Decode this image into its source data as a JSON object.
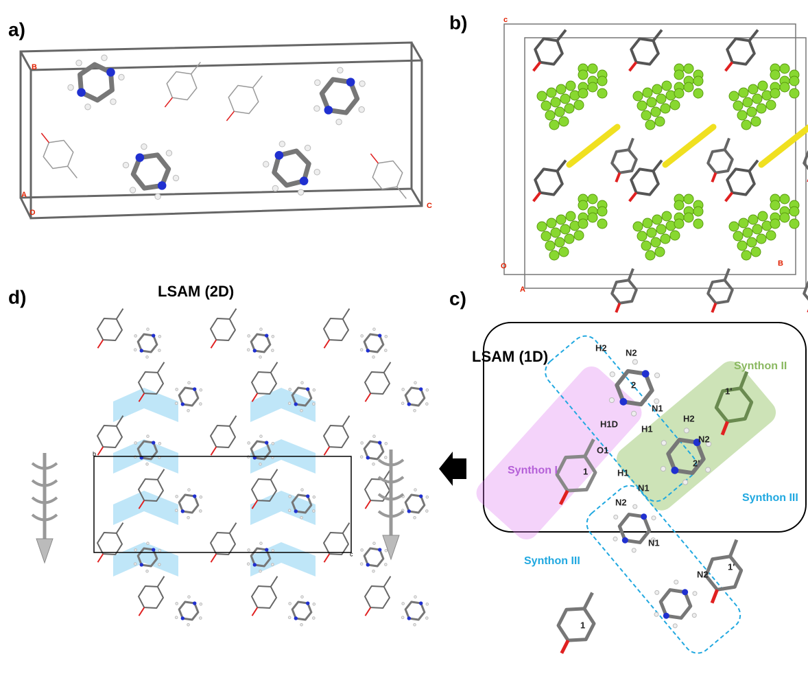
{
  "panels": [
    {
      "label": "a)",
      "axis_labels": [
        "B",
        "A",
        "O",
        "C"
      ]
    },
    {
      "label": "b)",
      "axis_labels": [
        "c",
        "O",
        "A",
        "B"
      ]
    },
    {
      "label": "c)",
      "title": "LSAM (1D)",
      "synthons": [
        "Synthon I",
        "Synthon II",
        "Synthon III",
        "Synthon III"
      ],
      "atom_labels": [
        "H2",
        "N2",
        "2",
        "N1",
        "H1D",
        "H1",
        "O1",
        "1",
        "2'",
        "H2",
        "N2",
        "1'",
        "H1",
        "N1",
        "N2",
        "N1",
        "N2",
        "1",
        "1'"
      ]
    },
    {
      "label": "d)",
      "title": "LSAM (2D)",
      "cell_labels": [
        "b",
        "c"
      ]
    }
  ]
}
